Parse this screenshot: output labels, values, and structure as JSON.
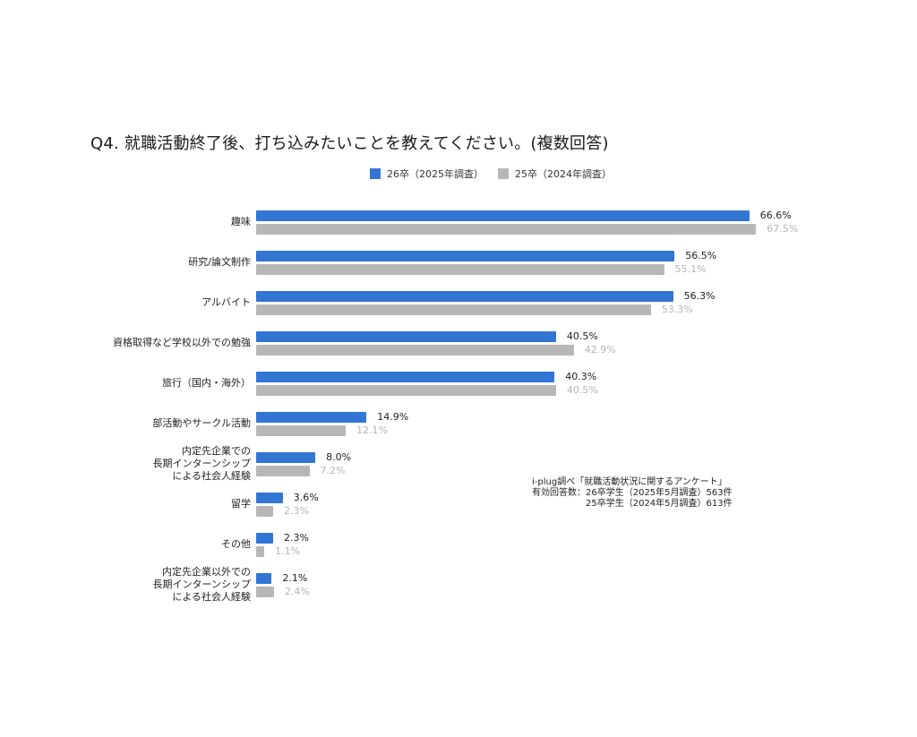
{
  "title": "Q4. 就職活動終了後、打ち込みたいことを教えてください。(複数回答)",
  "legend": [
    {
      "label": "26卒（2025年調査）",
      "color": "#3275D3"
    },
    {
      "label": "25卒（2024年調査）",
      "color": "#B7B7B7"
    }
  ],
  "note": {
    "line1": "i-plug調べ「就職活動状況に関するアンケート」",
    "line2": "有効回答数：26卒学生（2025年5月調査）563件",
    "line3": "　　　　　　25卒学生（2024年5月調査）613件"
  },
  "chart_data": {
    "type": "bar",
    "orientation": "horizontal",
    "title": "Q4. 就職活動終了後、打ち込みたいことを教えてください。(複数回答)",
    "xlabel": "",
    "ylabel": "",
    "unit": "%",
    "grid": false,
    "legend_position": "top",
    "categories": [
      "趣味",
      "研究/論文制作",
      "アルバイト",
      "資格取得など学校以外での勉強",
      "旅行（国内・海外）",
      "部活動やサークル活動",
      "内定先企業での\n長期インターンシップ\nによる社会人経験",
      "留学",
      "その他",
      "内定先企業以外での\n長期インターンシップ\nによる社会人経験"
    ],
    "series": [
      {
        "name": "26卒（2025年調査）",
        "color": "#3275D3",
        "values": [
          66.6,
          56.5,
          56.3,
          40.5,
          40.3,
          14.9,
          8.0,
          3.6,
          2.3,
          2.1
        ],
        "labels": [
          "66.6%",
          "56.5%",
          "56.3%",
          "40.5%",
          "40.3%",
          "14.9%",
          "8.0%",
          "3.6%",
          "2.3%",
          "2.1%"
        ]
      },
      {
        "name": "25卒（2024年調査）",
        "color": "#B7B7B7",
        "values": [
          67.5,
          55.1,
          53.3,
          42.9,
          40.5,
          12.1,
          7.2,
          2.3,
          1.1,
          2.4
        ],
        "labels": [
          "67.5%",
          "55.1%",
          "53.3%",
          "42.9%",
          "40.5%",
          "12.1%",
          "7.2%",
          "2.3%",
          "1.1%",
          "2.4%"
        ]
      }
    ],
    "source": "i-plug調べ「就職活動状況に関するアンケート」",
    "sample": [
      "26卒学生（2025年5月調査）563件",
      "25卒学生（2024年5月調査）613件"
    ]
  }
}
